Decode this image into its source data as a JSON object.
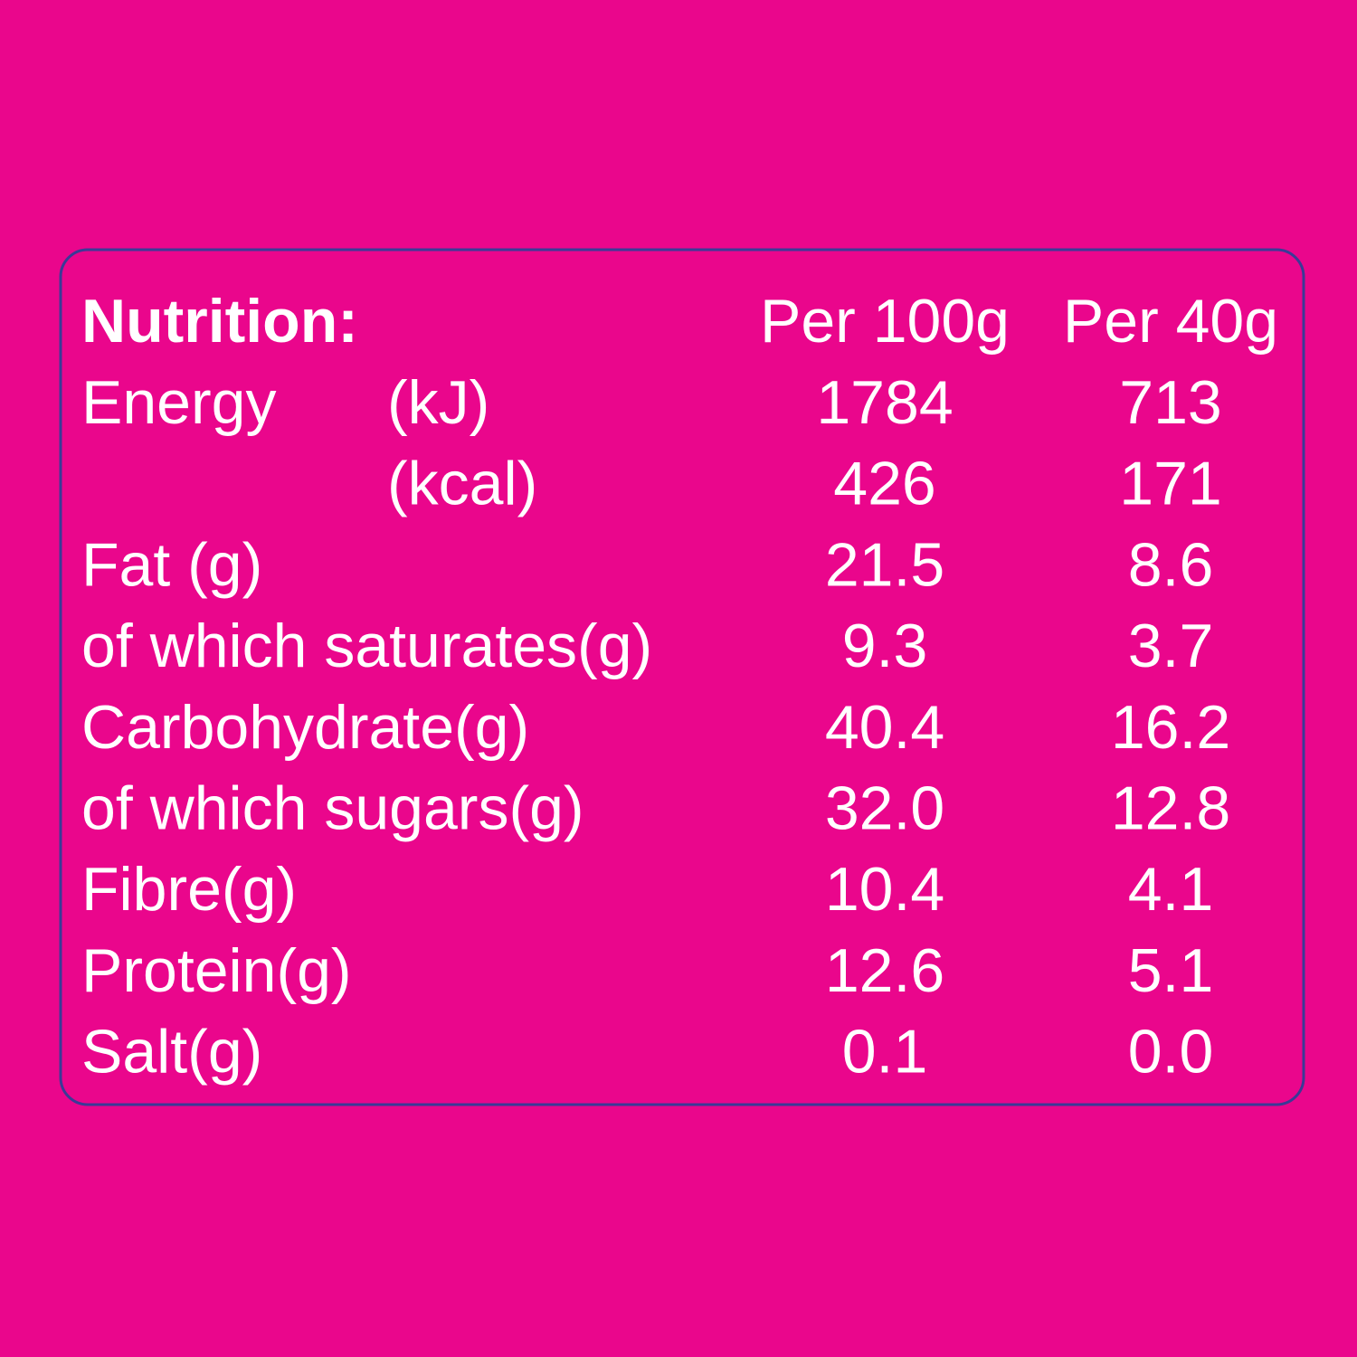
{
  "header": {
    "title": "Nutrition:",
    "columns": [
      "Per 100g",
      "Per 40g"
    ]
  },
  "rows": [
    {
      "label": "Energy",
      "unit": "(kJ)",
      "values": [
        "1784",
        "713"
      ]
    },
    {
      "unit": "(kcal)",
      "values": [
        "426",
        "171"
      ]
    },
    {
      "label": "Fat (g)",
      "values": [
        "21.5",
        "8.6"
      ]
    },
    {
      "label": "of which saturates(g)",
      "values": [
        "9.3",
        "3.7"
      ]
    },
    {
      "label": "Carbohydrate(g)",
      "values": [
        "40.4",
        "16.2"
      ]
    },
    {
      "label": "of which sugars(g)",
      "values": [
        "32.0",
        "12.8"
      ]
    },
    {
      "label": "Fibre(g)",
      "values": [
        "10.4",
        "4.1"
      ]
    },
    {
      "label": "Protein(g)",
      "values": [
        "12.6",
        "5.1"
      ]
    },
    {
      "label": "Salt(g)",
      "values": [
        "0.1",
        "0.0"
      ]
    }
  ]
}
